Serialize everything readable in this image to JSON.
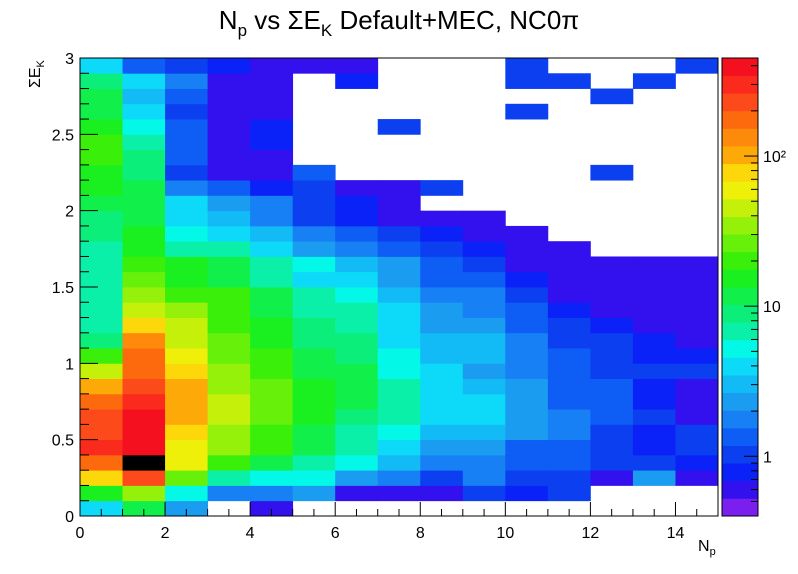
{
  "chart_data": {
    "type": "heatmap",
    "title": "N_p vs ΣE_K Default+MEC, NC0π",
    "title_main": "N",
    "title_sub": "p",
    "title_mid": " vs ΣE",
    "title_sub2": "K",
    "title_end": " Default+MEC, NC0π",
    "xlabel_main": "N",
    "xlabel_sub": "p",
    "ylabel_main": "ΣE",
    "ylabel_sub": "K",
    "xlim": [
      0,
      15
    ],
    "ylim": [
      0,
      3
    ],
    "x_bin_width": 1,
    "y_bin_width": 0.1,
    "x_ticks": [
      "0",
      "2",
      "4",
      "6",
      "8",
      "10",
      "12",
      "14"
    ],
    "y_ticks": [
      "0",
      "0.5",
      "1",
      "1.5",
      "2",
      "2.5",
      "3"
    ],
    "z_scale": "log",
    "z_range": [
      0.4,
      450
    ],
    "z_ticks": [
      "1",
      "10",
      "10²"
    ],
    "palette": [
      "#7b1fee",
      "#3311ee",
      "#0a22f8",
      "#0c3ff0",
      "#0e5df5",
      "#1780f4",
      "#1a9cf0",
      "#12baf6",
      "#0ddaf8",
      "#03f8e8",
      "#0bf0a8",
      "#0bef7a",
      "#10ef4a",
      "#1af01f",
      "#3af00a",
      "#66f00a",
      "#95f00a",
      "#c5f00a",
      "#eef00a",
      "#fcd80a",
      "#fdaa08",
      "#fd8a0a",
      "#fd6a0e",
      "#fc4a1a",
      "#fa2a1c",
      "#f51020"
    ],
    "bins_levels": [
      [
        8,
        13,
        19,
        22,
        24,
        23,
        23,
        22,
        20,
        17,
        14,
        11,
        10,
        10,
        10,
        10,
        10,
        10,
        11,
        11,
        12,
        13,
        13,
        14,
        14,
        13,
        12,
        12,
        11,
        8
      ],
      [
        12,
        16,
        23,
        26,
        25,
        25,
        25,
        24,
        23,
        22,
        22,
        21,
        19,
        17,
        16,
        15,
        14,
        13,
        13,
        12,
        12,
        12,
        11,
        11,
        10,
        9,
        8,
        7,
        8,
        4
      ],
      [
        6,
        9,
        15,
        18,
        18,
        19,
        20,
        20,
        20,
        19,
        18,
        17,
        17,
        16,
        14,
        13,
        13,
        10,
        9,
        8,
        8,
        5,
        3,
        4,
        4,
        4,
        3,
        4,
        5,
        3
      ],
      [
        -1,
        5,
        10,
        14,
        16,
        16,
        17,
        17,
        16,
        16,
        15,
        15,
        14,
        14,
        14,
        12,
        12,
        10,
        8,
        7,
        6,
        4,
        1,
        1,
        1,
        1,
        1,
        1,
        1,
        2
      ],
      [
        1,
        5,
        9,
        12,
        14,
        14,
        15,
        15,
        15,
        14,
        14,
        13,
        13,
        12,
        12,
        10,
        10,
        8,
        7,
        5,
        5,
        2,
        1,
        1,
        2,
        2,
        1,
        1,
        1,
        1
      ],
      [
        -1,
        6,
        9,
        10,
        12,
        12,
        13,
        13,
        13,
        12,
        12,
        11,
        11,
        10,
        10,
        8,
        9,
        6,
        5,
        3,
        3,
        3,
        4,
        -1,
        -1,
        -1,
        -1,
        -1,
        -1,
        1
      ],
      [
        -1,
        1,
        6,
        9,
        10,
        10,
        11,
        12,
        12,
        12,
        11,
        11,
        10,
        10,
        9,
        8,
        7,
        5,
        4,
        2,
        2,
        1,
        -1,
        -1,
        -1,
        -1,
        -1,
        -1,
        2,
        1
      ],
      [
        -1,
        1,
        5,
        7,
        8,
        9,
        10,
        10,
        10,
        9,
        9,
        8,
        8,
        8,
        7,
        6,
        6,
        4,
        3,
        1,
        1,
        1,
        -1,
        -1,
        -1,
        3,
        -1,
        -1,
        -1,
        -1
      ],
      [
        -1,
        1,
        3,
        5,
        6,
        7,
        8,
        8,
        8,
        8,
        7,
        7,
        6,
        6,
        5,
        4,
        4,
        3,
        2,
        1,
        -1,
        3,
        -1,
        -1,
        -1,
        -1,
        -1,
        -1,
        -1,
        -1
      ],
      [
        -1,
        3,
        5,
        5,
        6,
        7,
        8,
        8,
        7,
        6,
        7,
        7,
        6,
        5,
        5,
        4,
        3,
        2,
        1,
        1,
        -1,
        -1,
        -1,
        -1,
        -1,
        -1,
        -1,
        -1,
        -1,
        -1
      ],
      [
        -1,
        2,
        3,
        4,
        4,
        6,
        6,
        6,
        6,
        5,
        5,
        5,
        4,
        4,
        3,
        2,
        1,
        1,
        1,
        -1,
        -1,
        -1,
        -1,
        -1,
        -1,
        -1,
        3,
        -1,
        3,
        3
      ],
      [
        -1,
        3,
        3,
        4,
        4,
        5,
        5,
        4,
        4,
        4,
        4,
        3,
        3,
        2,
        1,
        1,
        1,
        1,
        -1,
        -1,
        -1,
        -1,
        -1,
        -1,
        -1,
        -1,
        -1,
        -1,
        3,
        -1
      ],
      [
        -1,
        -1,
        1,
        3,
        3,
        3,
        4,
        4,
        4,
        3,
        3,
        3,
        2,
        1,
        1,
        1,
        1,
        -1,
        -1,
        -1,
        -1,
        -1,
        3,
        -1,
        -1,
        -1,
        -1,
        3,
        -1,
        -1
      ],
      [
        -1,
        -1,
        6,
        3,
        2,
        2,
        3,
        2,
        2,
        3,
        2,
        2,
        1,
        1,
        1,
        1,
        1,
        -1,
        -1,
        -1,
        -1,
        -1,
        -1,
        -1,
        -1,
        -1,
        -1,
        -1,
        3,
        -1
      ],
      [
        -1,
        -1,
        1,
        2,
        3,
        3,
        1,
        1,
        1,
        3,
        2,
        1,
        1,
        1,
        1,
        1,
        1,
        -1,
        -1,
        -1,
        -1,
        -1,
        -1,
        -1,
        -1,
        -1,
        -1,
        -1,
        -1,
        3
      ]
    ]
  }
}
